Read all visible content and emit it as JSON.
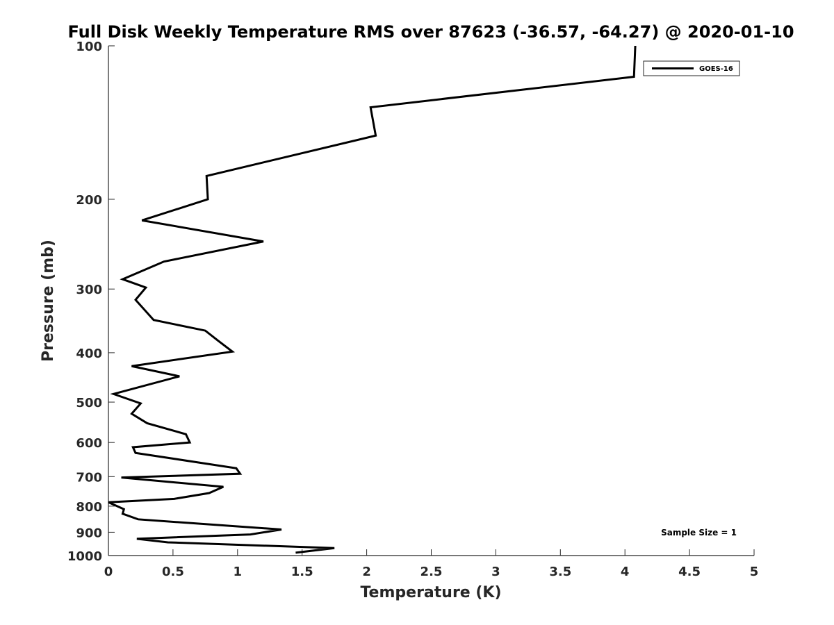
{
  "chart_data": {
    "type": "line",
    "title": "Full Disk Weekly Temperature RMS over 87623 (-36.57, -64.27) @ 2020-01-10",
    "xlabel": "Temperature (K)",
    "ylabel": "Pressure (mb)",
    "xlim": [
      0,
      5
    ],
    "ylim": [
      100,
      1000
    ],
    "y_scale": "log",
    "y_reversed": true,
    "grid": false,
    "legend_position": "top-right",
    "x_ticks": [
      0,
      0.5,
      1,
      1.5,
      2,
      2.5,
      3,
      3.5,
      4,
      4.5,
      5
    ],
    "x_tick_labels": [
      "0",
      "0.5",
      "1",
      "1.5",
      "2",
      "2.5",
      "3",
      "3.5",
      "4",
      "4.5",
      "5"
    ],
    "y_ticks": [
      100,
      200,
      300,
      400,
      500,
      600,
      700,
      800,
      900,
      1000
    ],
    "y_tick_labels": [
      "100",
      "200",
      "300",
      "400",
      "500",
      "600",
      "700",
      "800",
      "900",
      "1000"
    ],
    "series": [
      {
        "name": "GOES-16",
        "color": "#000000",
        "x": [
          4.08,
          4.07,
          2.03,
          2.07,
          0.76,
          0.77,
          0.26,
          1.2,
          0.43,
          0.11,
          0.29,
          0.21,
          0.35,
          0.75,
          0.85,
          0.96,
          0.18,
          0.55,
          0.04,
          0.25,
          0.18,
          0.3,
          0.6,
          0.63,
          0.19,
          0.21,
          0.99,
          1.02,
          0.1,
          0.89,
          0.78,
          0.51,
          0.0,
          0.12,
          0.11,
          0.23,
          1.34,
          1.1,
          0.22,
          0.46,
          1.75,
          1.45
        ],
        "y": [
          100,
          115,
          132,
          150,
          180,
          200,
          220,
          242,
          265,
          287,
          298,
          315,
          345,
          362,
          379,
          398,
          425,
          445,
          482,
          503,
          527,
          550,
          578,
          600,
          613,
          629,
          674,
          691,
          703,
          733,
          754,
          774,
          786,
          811,
          828,
          849,
          889,
          909,
          927,
          942,
          967,
          987
        ]
      }
    ],
    "annotations": [
      "Sample Size = 1"
    ]
  }
}
